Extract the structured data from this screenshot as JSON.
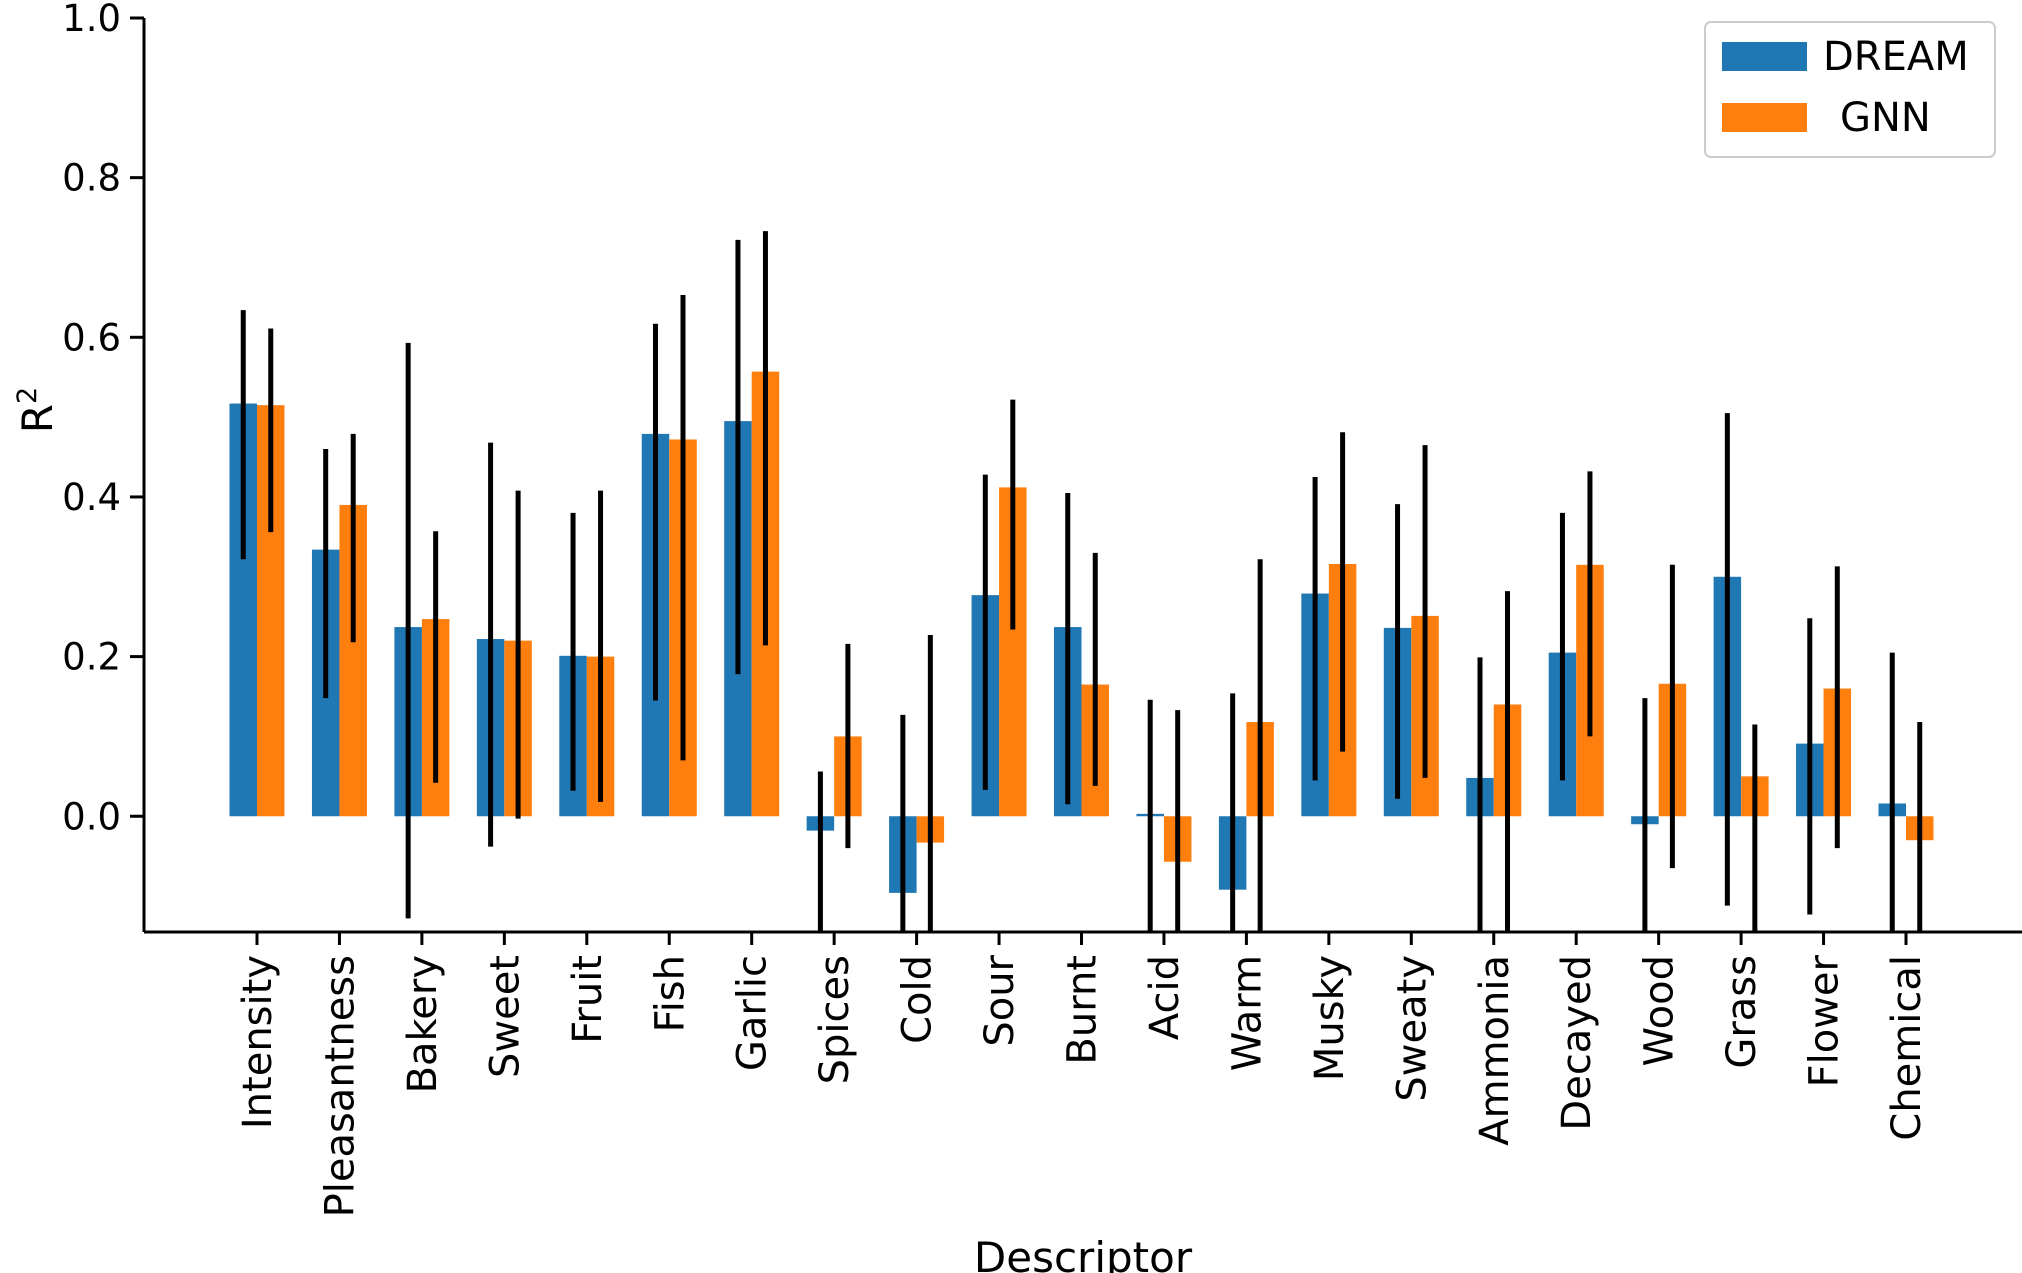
{
  "chart_data": {
    "type": "bar",
    "xlabel": "Descriptor",
    "ylabel": "R",
    "ylabel_superscript": "2",
    "ylim": [
      -0.145,
      1.0
    ],
    "yticks": [
      0.0,
      0.2,
      0.4,
      0.6,
      0.8,
      1.0
    ],
    "ytick_labels": [
      "0.0",
      "0.2",
      "0.4",
      "0.6",
      "0.8",
      "1.0"
    ],
    "legend_position": "top-right",
    "categories": [
      "Intensity",
      "Pleasantness",
      "Bakery",
      "Sweet",
      "Fruit",
      "Fish",
      "Garlic",
      "Spices",
      "Cold",
      "Sour",
      "Burnt",
      "Acid",
      "Warm",
      "Musky",
      "Sweaty",
      "Ammonia",
      "Decayed",
      "Wood",
      "Grass",
      "Flower",
      "Chemical"
    ],
    "series": [
      {
        "name": "DREAM",
        "color": "#1f77b4",
        "values": [
          0.517,
          0.334,
          0.237,
          0.222,
          0.201,
          0.479,
          0.495,
          -0.018,
          -0.096,
          0.277,
          0.237,
          0.003,
          -0.092,
          0.279,
          0.236,
          0.048,
          0.205,
          -0.01,
          0.3,
          0.091,
          0.016
        ],
        "err_low": [
          0.322,
          0.148,
          -0.128,
          -0.038,
          0.032,
          0.145,
          0.178,
          -0.145,
          -0.145,
          0.033,
          0.015,
          -0.145,
          -0.145,
          0.045,
          0.022,
          -0.145,
          0.045,
          -0.145,
          -0.112,
          -0.123,
          -0.145
        ],
        "err_high": [
          0.634,
          0.46,
          0.593,
          0.468,
          0.38,
          0.617,
          0.722,
          0.056,
          0.127,
          0.428,
          0.405,
          0.146,
          0.154,
          0.425,
          0.391,
          0.199,
          0.38,
          0.148,
          0.505,
          0.248,
          0.205
        ]
      },
      {
        "name": "GNN",
        "color": "#ff7f0e",
        "values": [
          0.515,
          0.39,
          0.247,
          0.22,
          0.2,
          0.472,
          0.557,
          0.1,
          -0.033,
          0.412,
          0.165,
          -0.057,
          0.118,
          0.316,
          0.251,
          0.14,
          0.315,
          0.166,
          0.05,
          0.16,
          -0.03
        ],
        "err_low": [
          0.356,
          0.218,
          0.042,
          -0.003,
          0.018,
          0.07,
          0.214,
          -0.04,
          -0.145,
          0.234,
          0.038,
          -0.145,
          -0.145,
          0.081,
          0.048,
          -0.145,
          0.1,
          -0.065,
          -0.145,
          -0.04,
          -0.145
        ],
        "err_high": [
          0.611,
          0.479,
          0.357,
          0.408,
          0.408,
          0.653,
          0.733,
          0.216,
          0.227,
          0.522,
          0.33,
          0.133,
          0.322,
          0.481,
          0.465,
          0.282,
          0.432,
          0.315,
          0.115,
          0.313,
          0.118
        ]
      }
    ]
  }
}
